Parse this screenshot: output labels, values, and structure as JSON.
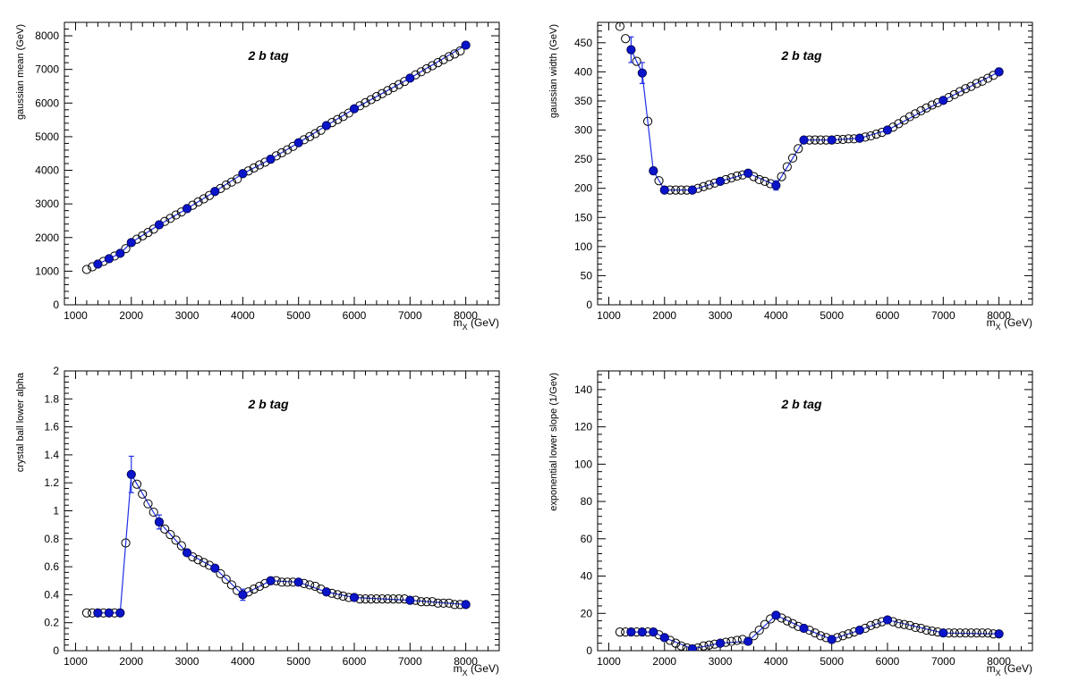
{
  "colors": {
    "fill_point": "#0a14c8",
    "line": "#2030e6",
    "open_point": "#000000"
  },
  "chart_data": [
    {
      "type": "scatter",
      "annotation": "2 b tag",
      "xlabel_main": "m",
      "xlabel_sub": "X",
      "xlabel_unit": "(GeV)",
      "ylabel": "gaussian mean (GeV)",
      "xlim": [
        800,
        8600
      ],
      "ylim": [
        0,
        8400
      ],
      "xticks": [
        1000,
        2000,
        3000,
        4000,
        5000,
        6000,
        7000,
        8000
      ],
      "yticks": [
        0,
        1000,
        2000,
        3000,
        4000,
        5000,
        6000,
        7000,
        8000
      ],
      "series": [
        {
          "marker": "open",
          "x": [
            1200,
            1300,
            1400,
            1500,
            1600,
            1700,
            1800,
            1900,
            2000,
            2100,
            2200,
            2300,
            2400,
            2500,
            2600,
            2700,
            2800,
            2900,
            3000,
            3100,
            3200,
            3300,
            3400,
            3500,
            3600,
            3700,
            3800,
            3900,
            4000,
            4100,
            4200,
            4300,
            4400,
            4500,
            4600,
            4700,
            4800,
            4900,
            5000,
            5100,
            5200,
            5300,
            5400,
            5500,
            5600,
            5700,
            5800,
            5900,
            6000,
            6100,
            6200,
            6300,
            6400,
            6500,
            6600,
            6700,
            6800,
            6900,
            7000,
            7100,
            7200,
            7300,
            7400,
            7500,
            7600,
            7700,
            7800,
            7900,
            8000
          ],
          "y": [
            1050,
            1130,
            1210,
            1290,
            1370,
            1450,
            1530,
            1670,
            1850,
            1950,
            2050,
            2150,
            2250,
            2380,
            2480,
            2570,
            2670,
            2760,
            2860,
            2960,
            3060,
            3150,
            3250,
            3370,
            3460,
            3560,
            3650,
            3740,
            3900,
            3980,
            4070,
            4160,
            4240,
            4330,
            4430,
            4520,
            4610,
            4710,
            4820,
            4910,
            5000,
            5090,
            5190,
            5330,
            5420,
            5510,
            5600,
            5700,
            5830,
            5920,
            6010,
            6100,
            6190,
            6280,
            6370,
            6460,
            6550,
            6640,
            6740,
            6840,
            6930,
            7020,
            7110,
            7200,
            7290,
            7380,
            7460,
            7550,
            7720
          ]
        },
        {
          "marker": "filled",
          "x": [
            1400,
            1600,
            1800,
            2000,
            2500,
            3000,
            3500,
            4000,
            4500,
            5000,
            5500,
            6000,
            7000,
            8000
          ],
          "y": [
            1210,
            1370,
            1530,
            1850,
            2380,
            2860,
            3370,
            3900,
            4330,
            4820,
            5330,
            5830,
            6740,
            7720
          ],
          "err": [
            0,
            0,
            0,
            0,
            0,
            0,
            0,
            0,
            0,
            0,
            0,
            0,
            0,
            0
          ]
        }
      ]
    },
    {
      "type": "scatter",
      "annotation": "2 b tag",
      "xlabel_main": "m",
      "xlabel_sub": "X",
      "xlabel_unit": "(GeV)",
      "ylabel": "gaussian width (GeV)",
      "xlim": [
        800,
        8600
      ],
      "ylim": [
        0,
        485
      ],
      "xticks": [
        1000,
        2000,
        3000,
        4000,
        5000,
        6000,
        7000,
        8000
      ],
      "yticks": [
        0,
        50,
        100,
        150,
        200,
        250,
        300,
        350,
        400,
        450
      ],
      "series": [
        {
          "marker": "open",
          "x": [
            1200,
            1300,
            1400,
            1500,
            1600,
            1700,
            1800,
            1900,
            2000,
            2100,
            2200,
            2300,
            2400,
            2500,
            2600,
            2700,
            2800,
            2900,
            3000,
            3100,
            3200,
            3300,
            3400,
            3500,
            3600,
            3700,
            3800,
            3900,
            4000,
            4100,
            4200,
            4300,
            4400,
            4500,
            4600,
            4700,
            4800,
            4900,
            5000,
            5100,
            5200,
            5300,
            5400,
            5500,
            5600,
            5700,
            5800,
            5900,
            6000,
            6100,
            6200,
            6300,
            6400,
            6500,
            6600,
            6700,
            6800,
            6900,
            7000,
            7100,
            7200,
            7300,
            7400,
            7500,
            7600,
            7700,
            7800,
            7900,
            8000
          ],
          "y": [
            478,
            457,
            438,
            418,
            398,
            315,
            230,
            213,
            197,
            197,
            197,
            197,
            197,
            197,
            200,
            203,
            206,
            209,
            212,
            215,
            218,
            221,
            223,
            226,
            220,
            215,
            212,
            208,
            205,
            220,
            237,
            252,
            268,
            283,
            283,
            283,
            283,
            283,
            283,
            284,
            284,
            285,
            285,
            286,
            288,
            290,
            293,
            296,
            300,
            305,
            311,
            317,
            323,
            328,
            333,
            338,
            343,
            347,
            351,
            356,
            361,
            366,
            371,
            375,
            380,
            384,
            389,
            394,
            400
          ]
        },
        {
          "marker": "filled",
          "x": [
            1400,
            1600,
            1800,
            2000,
            2500,
            3000,
            3500,
            4000,
            4500,
            5000,
            5500,
            6000,
            7000,
            8000
          ],
          "y": [
            438,
            398,
            230,
            197,
            197,
            212,
            226,
            205,
            283,
            283,
            286,
            300,
            351,
            400
          ],
          "err": [
            22,
            18,
            6,
            5,
            4,
            4,
            4,
            8,
            4,
            4,
            4,
            4,
            4,
            4
          ]
        }
      ]
    },
    {
      "type": "scatter",
      "annotation": "2 b tag",
      "xlabel_main": "m",
      "xlabel_sub": "X",
      "xlabel_unit": "(GeV)",
      "ylabel": "crystal ball lower alpha",
      "xlim": [
        800,
        8600
      ],
      "ylim": [
        0,
        2
      ],
      "xticks": [
        1000,
        2000,
        3000,
        4000,
        5000,
        6000,
        7000,
        8000
      ],
      "yticks": [
        0,
        0.2,
        0.4,
        0.6,
        0.8,
        1,
        1.2,
        1.4,
        1.6,
        1.8,
        2
      ],
      "series": [
        {
          "marker": "open",
          "x": [
            1200,
            1300,
            1400,
            1500,
            1600,
            1700,
            1800,
            1900,
            2000,
            2100,
            2200,
            2300,
            2400,
            2500,
            2600,
            2700,
            2800,
            2900,
            3000,
            3100,
            3200,
            3300,
            3400,
            3500,
            3600,
            3700,
            3800,
            3900,
            4000,
            4100,
            4200,
            4300,
            4400,
            4500,
            4600,
            4700,
            4800,
            4900,
            5000,
            5100,
            5200,
            5300,
            5400,
            5500,
            5600,
            5700,
            5800,
            5900,
            6000,
            6100,
            6200,
            6300,
            6400,
            6500,
            6600,
            6700,
            6800,
            6900,
            7000,
            7100,
            7200,
            7300,
            7400,
            7500,
            7600,
            7700,
            7800,
            7900,
            8000
          ],
          "y": [
            0.27,
            0.27,
            0.27,
            0.27,
            0.27,
            0.27,
            0.27,
            0.77,
            1.26,
            1.19,
            1.12,
            1.05,
            0.99,
            0.92,
            0.87,
            0.83,
            0.79,
            0.75,
            0.7,
            0.67,
            0.65,
            0.63,
            0.61,
            0.59,
            0.55,
            0.51,
            0.47,
            0.43,
            0.4,
            0.42,
            0.44,
            0.46,
            0.48,
            0.5,
            0.5,
            0.49,
            0.49,
            0.49,
            0.49,
            0.48,
            0.47,
            0.46,
            0.44,
            0.42,
            0.41,
            0.4,
            0.39,
            0.38,
            0.38,
            0.37,
            0.37,
            0.37,
            0.37,
            0.37,
            0.37,
            0.37,
            0.37,
            0.37,
            0.36,
            0.36,
            0.35,
            0.35,
            0.35,
            0.34,
            0.34,
            0.34,
            0.33,
            0.33,
            0.33
          ]
        },
        {
          "marker": "filled",
          "x": [
            1400,
            1600,
            1800,
            2000,
            2500,
            3000,
            3500,
            4000,
            4500,
            5000,
            5500,
            6000,
            7000,
            8000
          ],
          "y": [
            0.27,
            0.27,
            0.27,
            1.26,
            0.92,
            0.7,
            0.59,
            0.4,
            0.5,
            0.49,
            0.42,
            0.38,
            0.36,
            0.33
          ],
          "err": [
            0,
            0,
            0,
            0.13,
            0.05,
            0,
            0,
            0.04,
            0,
            0,
            0,
            0,
            0,
            0
          ]
        }
      ]
    },
    {
      "type": "scatter",
      "annotation": "2 b tag",
      "xlabel_main": "m",
      "xlabel_sub": "X",
      "xlabel_unit": "(GeV)",
      "ylabel": "exponential lower slope (1/Gev)",
      "xlim": [
        800,
        8600
      ],
      "ylim": [
        0,
        150
      ],
      "xticks": [
        1000,
        2000,
        3000,
        4000,
        5000,
        6000,
        7000,
        8000
      ],
      "yticks": [
        0,
        20,
        40,
        60,
        80,
        100,
        120,
        140
      ],
      "series": [
        {
          "marker": "open",
          "x": [
            1200,
            1300,
            1400,
            1500,
            1600,
            1700,
            1800,
            1900,
            2000,
            2100,
            2200,
            2300,
            2400,
            2500,
            2600,
            2700,
            2800,
            2900,
            3000,
            3100,
            3200,
            3300,
            3400,
            3500,
            3600,
            3700,
            3800,
            3900,
            4000,
            4100,
            4200,
            4300,
            4400,
            4500,
            4600,
            4700,
            4800,
            4900,
            5000,
            5100,
            5200,
            5300,
            5400,
            5500,
            5600,
            5700,
            5800,
            5900,
            6000,
            6100,
            6200,
            6300,
            6400,
            6500,
            6600,
            6700,
            6800,
            6900,
            7000,
            7100,
            7200,
            7300,
            7400,
            7500,
            7600,
            7700,
            7800,
            7900,
            8000
          ],
          "y": [
            10,
            10,
            10,
            10,
            10,
            10,
            10,
            8.5,
            7,
            5.5,
            4,
            2.5,
            1.5,
            1,
            1.5,
            2.5,
            3,
            3.5,
            4,
            4.5,
            5,
            5.5,
            6,
            5,
            8,
            11,
            14,
            17,
            19,
            17.5,
            16,
            14.5,
            13,
            12,
            11,
            9.5,
            8,
            7,
            6,
            7,
            8,
            9,
            10,
            11,
            12,
            13.5,
            14.5,
            15.5,
            16.5,
            15.5,
            14.5,
            14,
            13.5,
            12.5,
            12,
            11,
            10.5,
            10,
            9.5,
            9.5,
            9.5,
            9.5,
            9.5,
            9.5,
            9.5,
            9.5,
            9.5,
            9,
            9
          ]
        },
        {
          "marker": "filled",
          "x": [
            1400,
            1600,
            1800,
            2000,
            2500,
            3000,
            3500,
            4000,
            4500,
            5000,
            5500,
            6000,
            7000,
            8000
          ],
          "y": [
            10,
            10,
            10,
            7,
            1,
            4,
            5,
            19,
            12,
            6,
            11,
            16.5,
            9.5,
            9
          ],
          "err": [
            0,
            0,
            0,
            0,
            0,
            0,
            0,
            0,
            0,
            0,
            0,
            0,
            0,
            0
          ]
        }
      ]
    }
  ]
}
